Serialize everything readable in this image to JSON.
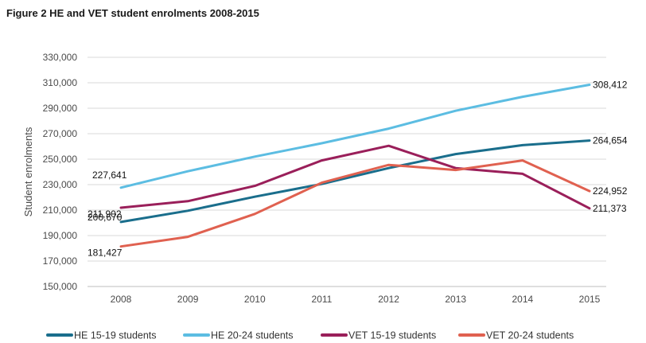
{
  "figure_title": "Figure 2 HE and VET student enrolments 2008-2015",
  "chart_data": {
    "type": "line",
    "title": "Figure 2 HE and VET student enrolments 2008-2015",
    "xlabel": "",
    "ylabel": "Student enrolments",
    "x": [
      "2008",
      "2009",
      "2010",
      "2011",
      "2012",
      "2013",
      "2014",
      "2015"
    ],
    "ylim": [
      150000,
      330000
    ],
    "yticks": [
      150000,
      170000,
      190000,
      210000,
      230000,
      250000,
      270000,
      290000,
      310000,
      330000
    ],
    "ytick_labels": [
      "150,000",
      "170,000",
      "190,000",
      "210,000",
      "230,000",
      "250,000",
      "270,000",
      "290,000",
      "310,000",
      "330,000"
    ],
    "grid": "horizontal",
    "legend_position": "bottom",
    "series": [
      {
        "name": "HE 15-19 students",
        "color": "#1a6e8c",
        "values": [
          200670,
          209500,
          220500,
          230500,
          243000,
          254000,
          261000,
          264654
        ],
        "labels": [
          {
            "index": 0,
            "text": "200,670",
            "pos": "left-below"
          },
          {
            "index": 7,
            "text": "264,654",
            "pos": "right"
          }
        ]
      },
      {
        "name": "HE 20-24 students",
        "color": "#5cbde2",
        "values": [
          227641,
          240500,
          252000,
          262500,
          274000,
          288000,
          299000,
          308412
        ],
        "labels": [
          {
            "index": 0,
            "text": "227,641",
            "pos": "above-left"
          },
          {
            "index": 7,
            "text": "308,412",
            "pos": "right"
          }
        ]
      },
      {
        "name": "VET 15-19 students",
        "color": "#9a1f5a",
        "values": [
          211902,
          217000,
          229000,
          249000,
          260500,
          243000,
          238500,
          211373
        ],
        "labels": [
          {
            "index": 0,
            "text": "211,902",
            "pos": "below-left"
          },
          {
            "index": 7,
            "text": "211,373",
            "pos": "right"
          }
        ]
      },
      {
        "name": "VET 20-24 students",
        "color": "#e06150",
        "values": [
          181427,
          189000,
          207000,
          231500,
          245500,
          241500,
          249000,
          224952
        ],
        "labels": [
          {
            "index": 0,
            "text": "181,427",
            "pos": "below-left"
          },
          {
            "index": 7,
            "text": "224,952",
            "pos": "right"
          }
        ]
      }
    ]
  }
}
